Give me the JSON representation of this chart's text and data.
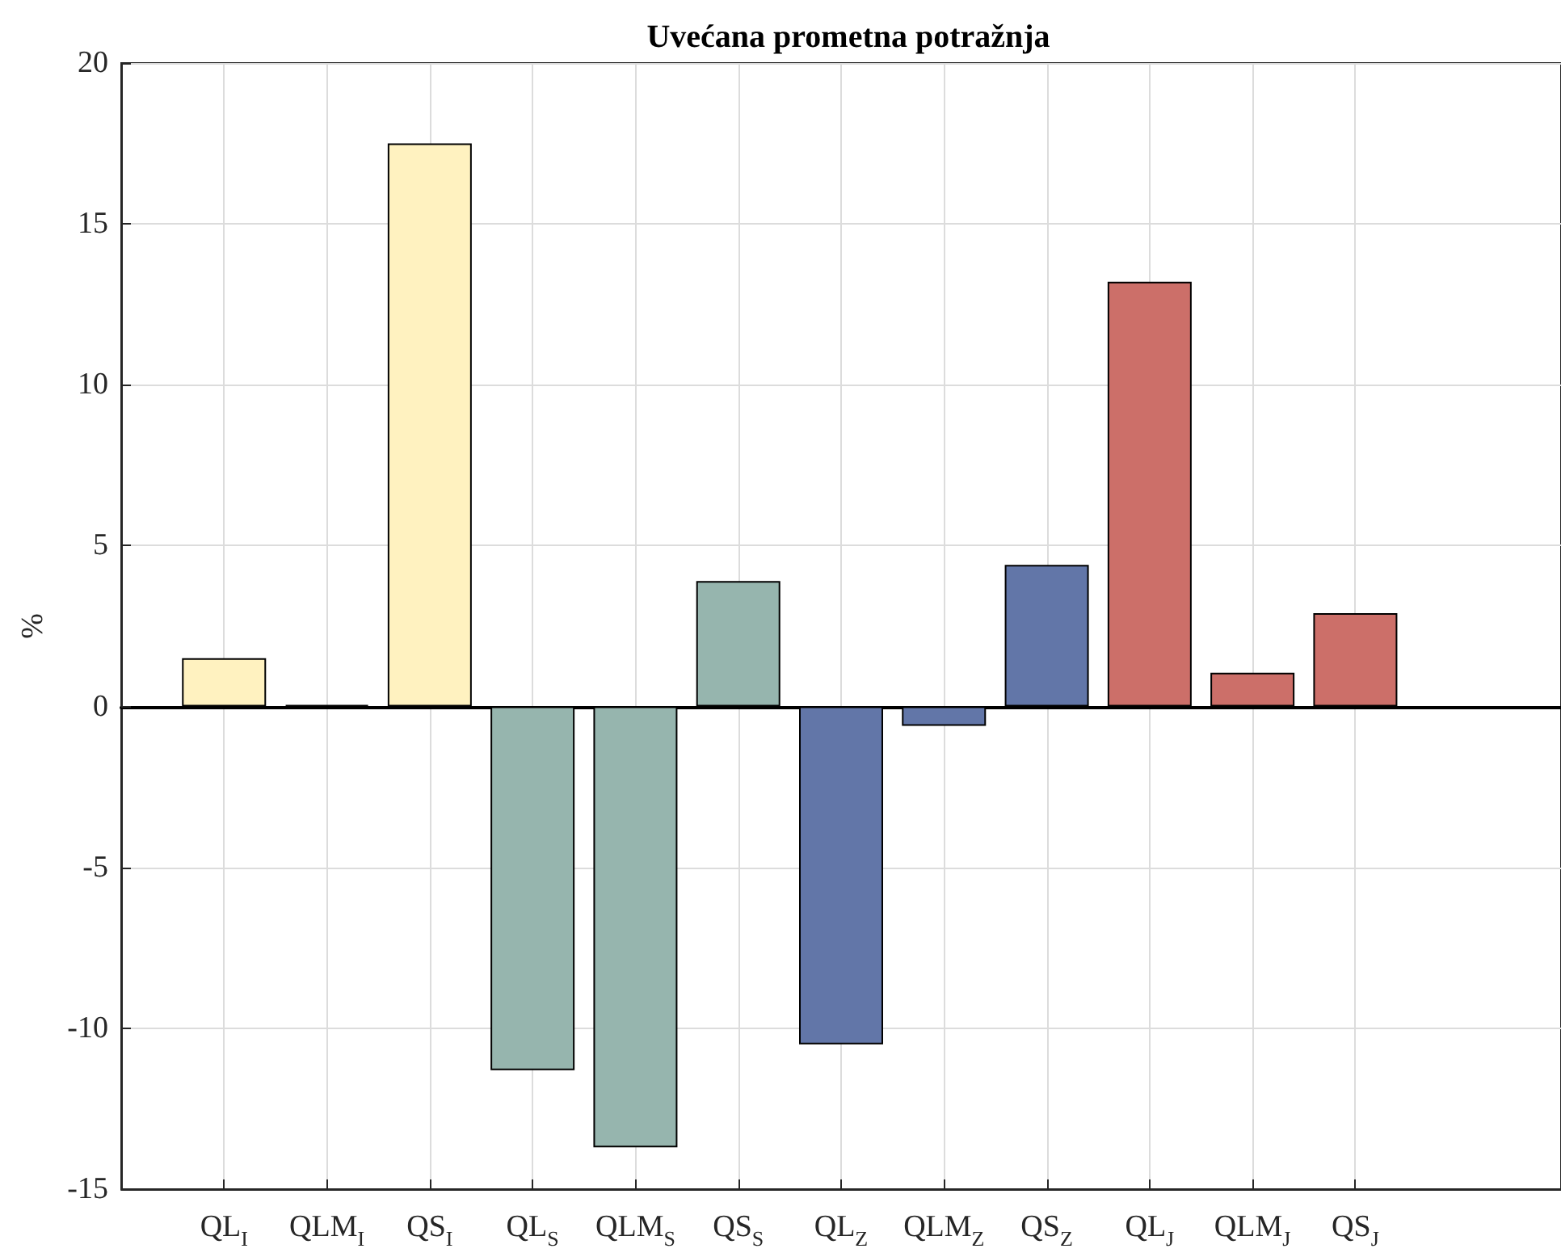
{
  "chart_data": {
    "type": "bar",
    "title": "Uvećana prometna potražnja",
    "ylabel": "%",
    "categories": [
      "QL$_{I}$",
      "QLM$_{I}$",
      "QS$_{I}$",
      "QL$_{S}$",
      "QLM$_{S}$",
      "QS$_{S}$",
      "QL$_{Z}$",
      "QLM$_{Z}$",
      "QS$_{Z}$",
      "QL$_{J}$",
      "QLM$_{J}$",
      "QS$_{J}$"
    ],
    "values": [
      1.5,
      0.05,
      17.5,
      -11.3,
      -13.7,
      3.9,
      -10.5,
      -0.6,
      4.4,
      13.2,
      1.05,
      2.9
    ],
    "colors": [
      "#fff2c0",
      "#000000",
      "#fff2c0",
      "#96b5ae",
      "#96b5ae",
      "#96b5ae",
      "#6276a8",
      "#6276a8",
      "#6276a8",
      "#cc6f69",
      "#cc6f69",
      "#cc6f69"
    ],
    "ylim": [
      -15,
      20
    ],
    "yticks": [
      -15,
      -10,
      -5,
      0,
      5,
      10,
      15,
      20
    ],
    "grid": true
  }
}
